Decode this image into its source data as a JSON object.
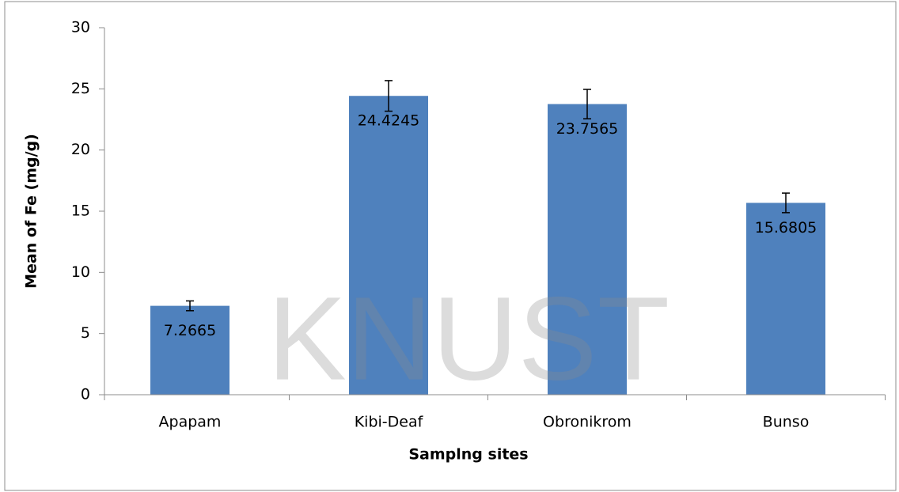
{
  "chart_data": {
    "type": "bar",
    "xlabel": "Samplng sites",
    "ylabel": "Mean of Fe (mg/g)",
    "categories": [
      "Apapam",
      "Kibi-Deaf",
      "Obronikrom",
      "Bunso"
    ],
    "values": [
      7.2665,
      24.4245,
      23.7565,
      15.6805
    ],
    "errors": [
      0.4,
      1.25,
      1.2,
      0.8
    ],
    "color": "#4f81bd",
    "ylim": [
      0,
      30
    ],
    "yticks": [
      0,
      5,
      10,
      15,
      20,
      25,
      30
    ],
    "grid": false,
    "watermark": "KNUST"
  }
}
